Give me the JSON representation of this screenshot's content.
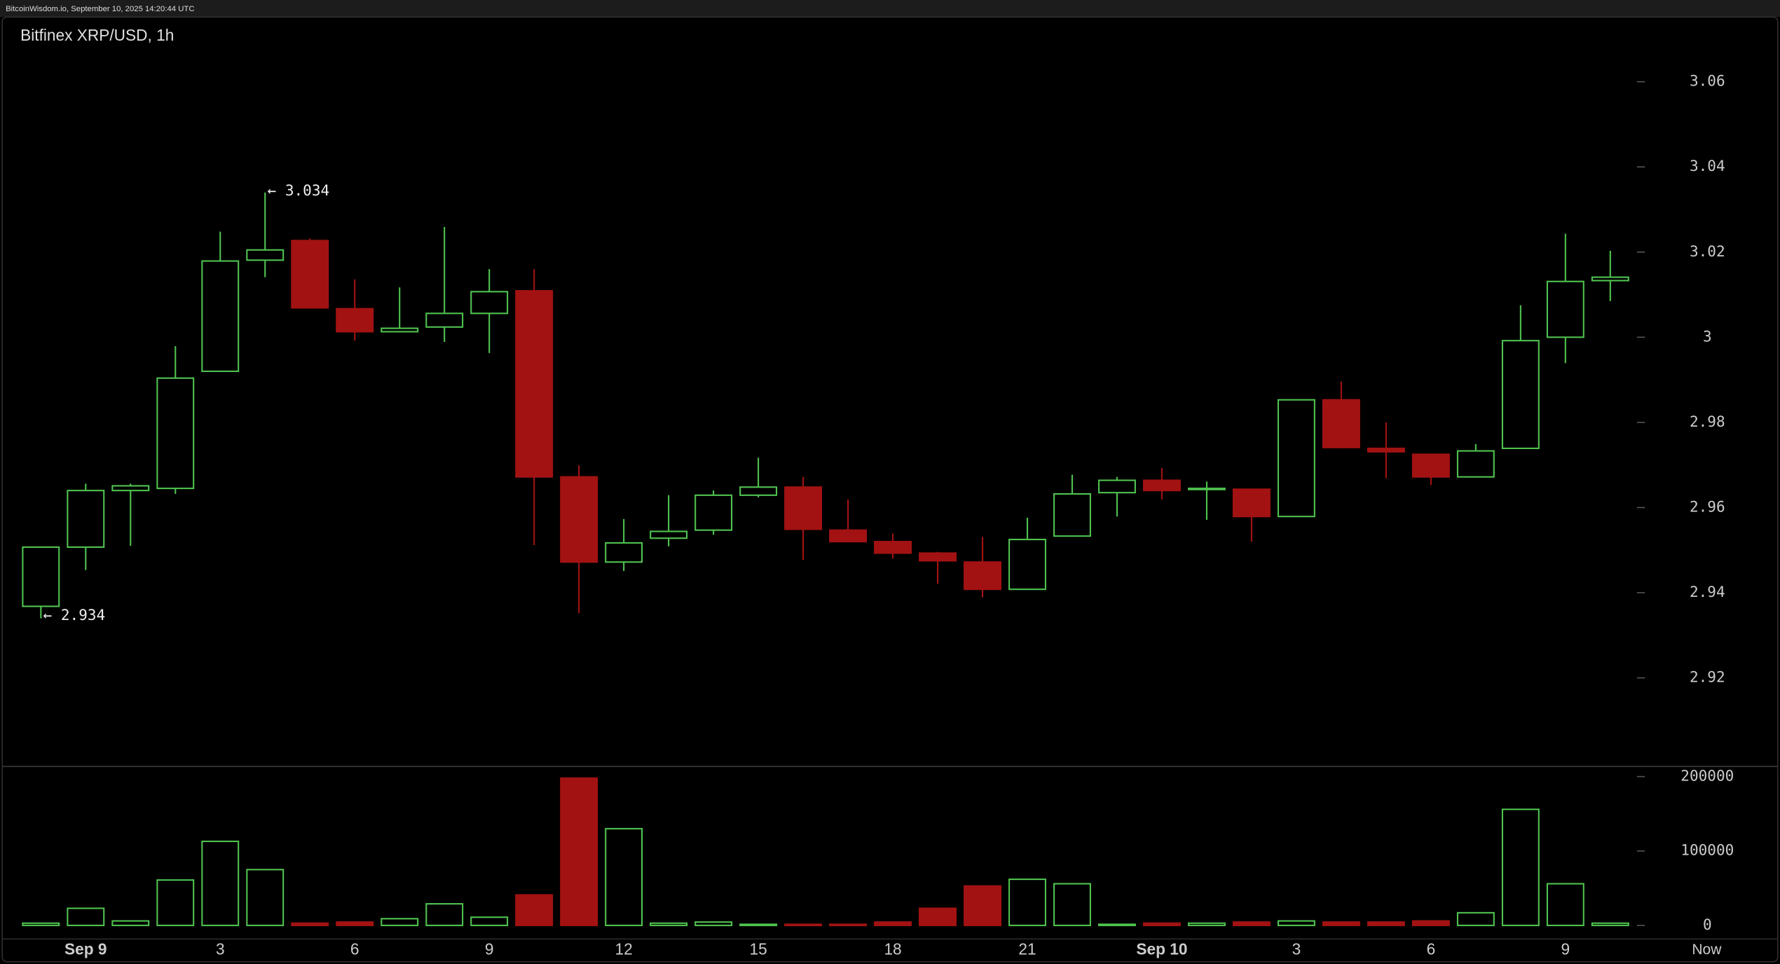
{
  "chart_data": {
    "type": "candlestick",
    "header": "BitcoinWisdom.io, September 10, 2025 14:20:44 UTC",
    "title": "Bitfinex XRP/USD, 1h",
    "categories": [
      null,
      "Sep 9",
      null,
      null,
      "3",
      null,
      null,
      "6",
      null,
      null,
      "9",
      null,
      null,
      "12",
      null,
      null,
      "15",
      null,
      null,
      "18",
      null,
      null,
      "21",
      null,
      null,
      "Sep 10",
      null,
      null,
      "3",
      null,
      null,
      "6",
      null,
      null,
      "9",
      null
    ],
    "now_label": "Now",
    "open": [
      2.9368,
      2.9507,
      2.964,
      2.9645,
      2.992,
      3.0181,
      3.0227,
      3.0067,
      3.0013,
      3.0024,
      3.0056,
      3.0109,
      2.9672,
      2.9472,
      2.9528,
      2.9547,
      2.9629,
      2.9648,
      2.9547,
      2.952,
      2.9493,
      2.9472,
      2.9408,
      2.9533,
      2.9635,
      2.9664,
      2.9643,
      2.9643,
      2.9579,
      2.9853,
      2.9739,
      2.9725,
      2.9672,
      2.9739,
      3.0,
      3.0133
    ],
    "high": [
      2.9507,
      2.9656,
      2.9656,
      2.9979,
      3.0248,
      3.034,
      3.0232,
      3.0136,
      3.0117,
      3.0259,
      3.016,
      3.016,
      2.9699,
      2.9573,
      2.9629,
      2.964,
      2.9717,
      2.9672,
      2.9619,
      2.9539,
      2.9496,
      2.9531,
      2.9576,
      2.9677,
      2.9672,
      2.9693,
      2.9661,
      2.9643,
      2.9853,
      2.9896,
      2.98,
      2.9725,
      2.9749,
      3.0075,
      3.0243,
      3.0203
    ],
    "low": [
      2.934,
      2.9453,
      2.951,
      2.9632,
      2.992,
      3.0141,
      3.0069,
      2.9992,
      3.0011,
      2.9989,
      2.9963,
      2.9512,
      2.9352,
      2.9451,
      2.9509,
      2.9536,
      2.9624,
      2.9477,
      2.952,
      2.948,
      2.9421,
      2.9389,
      2.9408,
      2.9533,
      2.9579,
      2.9619,
      2.9571,
      2.952,
      2.9579,
      2.9739,
      2.9669,
      2.9653,
      2.9672,
      2.9739,
      2.9939,
      3.0085
    ],
    "close": [
      2.9507,
      2.964,
      2.9651,
      2.9904,
      3.0179,
      3.0205,
      3.0069,
      3.0013,
      3.0021,
      3.0056,
      3.0107,
      2.9672,
      2.9472,
      2.9517,
      2.9544,
      2.9629,
      2.9648,
      2.9549,
      2.952,
      2.9493,
      2.9475,
      2.9408,
      2.9525,
      2.9632,
      2.9664,
      2.964,
      2.9645,
      2.9579,
      2.9853,
      2.9741,
      2.9731,
      2.9672,
      2.9733,
      2.9992,
      3.0131,
      3.0141
    ],
    "high_label": "← 3.034",
    "low_label": "← 2.934",
    "up_color": "#4fc24f",
    "down_color": "#a31212",
    "ylim": [
      2.8992,
      3.0752
    ],
    "yticks": [
      2.92,
      2.94,
      2.96,
      2.98,
      3,
      3.02,
      3.04,
      3.06
    ],
    "volume": {
      "values": [
        3000,
        23000,
        6000,
        61000,
        113000,
        75000,
        3000,
        4500,
        9000,
        29000,
        11000,
        41000,
        198000,
        130000,
        3000,
        4500,
        1500,
        1500,
        1500,
        4500,
        23000,
        53000,
        62000,
        56000,
        1500,
        3000,
        3000,
        4500,
        6000,
        4500,
        4500,
        6000,
        17000,
        156000,
        56000,
        3000
      ],
      "ylim": [
        -18300,
        213700
      ],
      "yticks": [
        0,
        100000,
        200000
      ]
    }
  }
}
